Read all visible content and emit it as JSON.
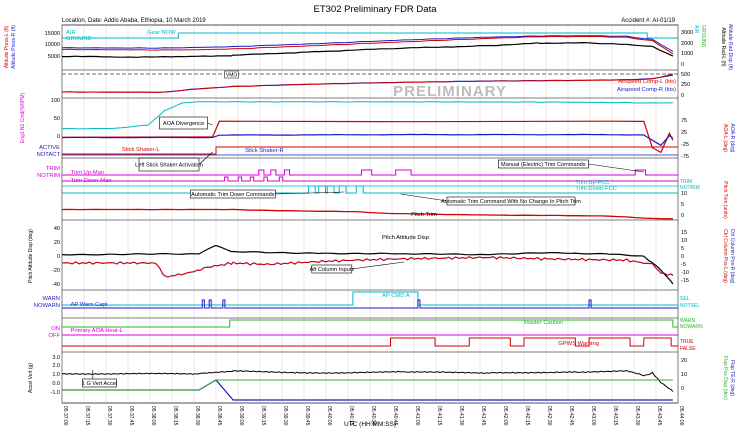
{
  "header": {
    "title": "ET302 Preliminary FDR Data",
    "location": "Location, Date: Addis Ababa, Ethiopia, 10 March 2019",
    "accident": "Accident #: AI-01/19",
    "watermark": "PRELIMINARY"
  },
  "colors": {
    "red": "#d40000",
    "blue": "#1a1acc",
    "black": "#000000",
    "cyan": "#00b8c8",
    "magenta": "#d400d4",
    "green": "#2bb52b",
    "grid": "#c8c8c8"
  },
  "chart_data": {
    "type": "line",
    "xlabel": "UTC (HH:MM:SS)",
    "x_ticks": [
      "05:37:00",
      "05:37:15",
      "05:37:30",
      "05:37:45",
      "05:38:00",
      "05:38:15",
      "05:38:30",
      "05:38:45",
      "05:39:00",
      "05:39:15",
      "05:39:30",
      "05:39:45",
      "05:40:00",
      "05:40:15",
      "05:40:30",
      "05:40:45",
      "05:41:00",
      "05:41:15",
      "05:41:30",
      "05:41:45",
      "05:42:00",
      "05:42:15",
      "05:42:30",
      "05:42:45",
      "05:43:00",
      "05:43:15",
      "05:43:30",
      "05:43:45",
      "05:44:00"
    ],
    "grid": true,
    "panels": {
      "altitude": {
        "left_label_red": "Altitude Press-L (ft)",
        "left_label_blue": "Altitude Press-R (ft)",
        "right_label_black": "Altitude Rad-L (ft)",
        "right_label_blue": "Altitude Rad Disp (ft)",
        "left_ticks": [
          "15000",
          "10000",
          "5000"
        ],
        "right_ticks": [
          "3000",
          "2000",
          "1000",
          "0"
        ],
        "disc_air": "AIR",
        "disc_ground": "GROUND",
        "disc_gear": "Gear NOW",
        "right_label_cyan_air": "AIR",
        "right_label_green_gnd": "GROUND",
        "press_l": [
          [
            0,
            7800
          ],
          [
            60,
            7600
          ],
          [
            75,
            7650
          ],
          [
            100,
            8000
          ],
          [
            150,
            9500
          ],
          [
            200,
            11000
          ],
          [
            250,
            12500
          ],
          [
            280,
            13200
          ],
          [
            310,
            13300
          ],
          [
            330,
            12900
          ],
          [
            345,
            11500
          ],
          [
            357,
            6000
          ]
        ],
        "press_r": [
          [
            0,
            8500
          ],
          [
            60,
            8400
          ],
          [
            75,
            8600
          ],
          [
            100,
            9000
          ],
          [
            150,
            10300
          ],
          [
            200,
            11800
          ],
          [
            250,
            13000
          ],
          [
            280,
            13500
          ],
          [
            310,
            13600
          ],
          [
            330,
            13300
          ],
          [
            345,
            12000
          ],
          [
            357,
            7000
          ]
        ],
        "rad": [
          [
            0,
            4800
          ],
          [
            60,
            4600
          ],
          [
            75,
            4800
          ],
          [
            100,
            5300
          ],
          [
            150,
            7000
          ],
          [
            200,
            8300
          ],
          [
            250,
            9500
          ],
          [
            280,
            10500
          ],
          [
            310,
            10500
          ],
          [
            330,
            9800
          ],
          [
            345,
            9000
          ],
          [
            357,
            5000
          ]
        ]
      },
      "airspeed": {
        "right_label_red": "Airspeed Comp-L (kts)",
        "right_label_blue": "Airspeed Comp-R (kts)",
        "right_ticks": [
          "500",
          "250",
          "0"
        ],
        "vmo_label": "VMO",
        "speed_l": [
          [
            0,
            70
          ],
          [
            60,
            65
          ],
          [
            75,
            130
          ],
          [
            100,
            200
          ],
          [
            150,
            260
          ],
          [
            200,
            300
          ],
          [
            250,
            330
          ],
          [
            300,
            345
          ],
          [
            330,
            360
          ],
          [
            345,
            380
          ],
          [
            357,
            500
          ]
        ],
        "speed_r": [
          [
            0,
            72
          ],
          [
            60,
            68
          ],
          [
            75,
            135
          ],
          [
            100,
            205
          ],
          [
            150,
            265
          ],
          [
            200,
            305
          ],
          [
            250,
            335
          ],
          [
            300,
            350
          ],
          [
            330,
            365
          ],
          [
            345,
            390
          ],
          [
            357,
            470
          ]
        ]
      },
      "n1": {
        "left_label": "Eng1 N1 Cmd(%RPM)",
        "left_ticks": [
          "100",
          "50",
          "0"
        ],
        "values": [
          [
            0,
            20
          ],
          [
            30,
            21
          ],
          [
            50,
            30
          ],
          [
            60,
            70
          ],
          [
            70,
            92
          ],
          [
            80,
            95
          ],
          [
            200,
            95
          ],
          [
            300,
            94
          ],
          [
            340,
            92
          ],
          [
            357,
            92
          ]
        ]
      },
      "aoa": {
        "right_label_red": "AOA-L (deg)",
        "right_label_blue": "AOA-R (deg)",
        "right_ticks": [
          "75",
          "25",
          "-25",
          "-75"
        ],
        "disc_active": "ACTIVE",
        "disc_notact": "NOTACT",
        "stick_shaker_l": "Stick Shaker-L",
        "stick_shaker_r": "Stick Shaker-R",
        "aoa_l": [
          [
            0,
            3
          ],
          [
            80,
            4
          ],
          [
            88,
            5
          ],
          [
            92,
            70
          ],
          [
            200,
            68
          ],
          [
            320,
            70
          ],
          [
            340,
            69
          ],
          [
            345,
            -40
          ],
          [
            350,
            -60
          ],
          [
            355,
            20
          ],
          [
            357,
            -10
          ]
        ],
        "aoa_r": [
          [
            0,
            2
          ],
          [
            80,
            2
          ],
          [
            88,
            3
          ],
          [
            92,
            12
          ],
          [
            200,
            14
          ],
          [
            320,
            14
          ],
          [
            340,
            13
          ],
          [
            345,
            -10
          ],
          [
            350,
            -30
          ],
          [
            355,
            10
          ],
          [
            357,
            0
          ]
        ]
      },
      "trim": {
        "disc_trim": "TRIM",
        "disc_notrim": "NOTRIM",
        "trim_up_man": "Trim Up-Man",
        "trim_down_man": "Trim Down-Man",
        "trim_up_fcc": "Trim Up-FCC",
        "trim_down_fcc": "Trim Down-FCC",
        "right_label": "Pitch Trim (units)",
        "right_ticks": [
          "10",
          "5",
          "0"
        ],
        "pitch_trim_label": "Pitch Trim",
        "pitch_trim": [
          [
            0,
            5.5
          ],
          [
            100,
            5.5
          ],
          [
            110,
            5.3
          ],
          [
            140,
            5.0
          ],
          [
            170,
            4.8
          ],
          [
            190,
            4.2
          ],
          [
            230,
            3.8
          ],
          [
            260,
            3.6
          ],
          [
            290,
            3.5
          ],
          [
            320,
            3.3
          ],
          [
            345,
            2.5
          ],
          [
            357,
            2.4
          ]
        ],
        "man_up_pulses": [
          [
            115,
            1
          ],
          [
            122,
            1
          ],
          [
            130,
            1
          ],
          [
            175,
            2
          ],
          [
            195,
            3
          ],
          [
            335,
            2
          ]
        ],
        "man_down_pulses": [
          [
            95,
            1
          ],
          [
            103,
            1
          ],
          [
            110,
            1
          ],
          [
            118,
            1
          ],
          [
            127,
            1
          ]
        ],
        "fcc_down_pulses": [
          [
            144,
            2
          ],
          [
            150,
            2
          ],
          [
            155,
            2
          ],
          [
            162,
            2
          ],
          [
            172,
            2
          ]
        ]
      },
      "pitch": {
        "left_label": "Pitch Attitude Disp (deg)",
        "left_ticks": [
          "40",
          "20",
          "0",
          "-20",
          "-40"
        ],
        "right_label_red": "Ctrl Column Pos-L (deg)",
        "right_label_blue": "Ctrl Column Pos-R (deg)",
        "right_ticks": [
          "15",
          "10",
          "5",
          "0",
          "-5",
          "-10",
          "-15"
        ],
        "pitch_label": "Pitch Attitude Disp",
        "pitch_att": [
          [
            0,
            2
          ],
          [
            80,
            3
          ],
          [
            90,
            15
          ],
          [
            100,
            6
          ],
          [
            150,
            4
          ],
          [
            200,
            3
          ],
          [
            250,
            2
          ],
          [
            280,
            5
          ],
          [
            300,
            4
          ],
          [
            320,
            3
          ],
          [
            340,
            0
          ],
          [
            345,
            -10
          ],
          [
            350,
            -20
          ],
          [
            357,
            -40
          ]
        ],
        "column_l": [
          [
            0,
            -5
          ],
          [
            55,
            -5
          ],
          [
            60,
            -15
          ],
          [
            75,
            -12
          ],
          [
            85,
            -8
          ],
          [
            100,
            -5
          ],
          [
            120,
            -6
          ],
          [
            150,
            -4
          ],
          [
            170,
            -3
          ],
          [
            200,
            -2
          ],
          [
            250,
            -1
          ],
          [
            280,
            -2
          ],
          [
            330,
            -3
          ],
          [
            345,
            -6
          ],
          [
            350,
            -12
          ],
          [
            357,
            -14
          ]
        ],
        "column_r": [
          [
            0,
            -5
          ],
          [
            55,
            -5
          ],
          [
            60,
            -15
          ],
          [
            75,
            -12
          ],
          [
            85,
            -8
          ],
          [
            100,
            -5
          ],
          [
            120,
            -6
          ],
          [
            150,
            -4
          ],
          [
            170,
            -3
          ],
          [
            200,
            -2
          ],
          [
            250,
            -1
          ],
          [
            280,
            -2
          ],
          [
            330,
            -3
          ],
          [
            345,
            -6
          ],
          [
            350,
            -12
          ],
          [
            357,
            -14
          ]
        ]
      },
      "autopilot": {
        "disc_warn": "WARN",
        "disc_nowarn": "NOWARN",
        "ap_warn_label": "AP Warn Capt",
        "ap_cmd_label": "AP CMD A",
        "sel_label": "SEL",
        "notsel_label": "NOTSEL",
        "ap_engaged": [
          [
            170,
            208
          ]
        ],
        "ap_warn_pulses": [
          82,
          86,
          94,
          208,
          308
        ]
      },
      "caution": {
        "disc_on": "ON",
        "disc_off": "OFF",
        "aoa_heat_label": "Primary AOA Heat-L",
        "master_caution_label": "Master Caution",
        "right_warn": "WARN",
        "right_nowarn": "NOWARN",
        "master_caution_on": [
          [
            98,
            357
          ]
        ],
        "gpws_label": "GPWS Warning",
        "right_true": "TRUE",
        "right_false": "FALSE",
        "gpws_pulses": [
          [
            192,
            218
          ],
          [
            238,
            262
          ],
          [
            270,
            300
          ],
          [
            308,
            332
          ],
          [
            340,
            356
          ]
        ]
      },
      "accel": {
        "left_label": "Accel Vert (g)",
        "left_ticks": [
          "3.0",
          "2.0",
          "1.0",
          "0.0",
          "-1.0"
        ],
        "right_label_green": "Flap Pos Disp (dec)",
        "right_label_blue": "Flap TE-R (deg)",
        "right_ticks": [
          "20",
          "10",
          "0"
        ],
        "accel_label": "1 G Vert Accel",
        "accel_vert": [
          [
            0,
            1.0
          ],
          [
            60,
            1.0
          ],
          [
            80,
            1.0
          ],
          [
            100,
            1.3
          ],
          [
            150,
            1.1
          ],
          [
            200,
            1.2
          ],
          [
            250,
            1.1
          ],
          [
            300,
            1.2
          ],
          [
            330,
            1.3
          ],
          [
            340,
            0.8
          ],
          [
            345,
            1.1
          ],
          [
            350,
            0.0
          ],
          [
            357,
            -1.0
          ]
        ],
        "flaps": [
          [
            0,
            0
          ],
          [
            80,
            0
          ],
          [
            90,
            1
          ],
          [
            100,
            -1
          ],
          [
            357,
            -1
          ]
        ]
      }
    },
    "annotations": {
      "aoa_divergence": "AOA Divergence",
      "left_shaker": "Left Stick Shaker Activation",
      "auto_trim_down": "Automatic Trim Down Commands",
      "auto_trim_no_change": "Automatic Trim Command With No Change In Pitch Trim",
      "manual_trim": "Manual (Electric) Trim Commands",
      "aft_column": "Aft Column Inputs"
    }
  }
}
